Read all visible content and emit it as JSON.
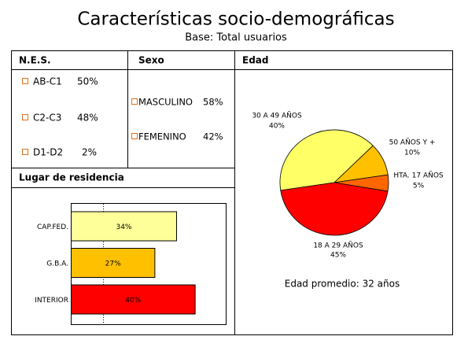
{
  "title": "Características socio-demográficas",
  "subtitle": "Base: Total usuarios",
  "nes": {
    "header": "N.E.S.",
    "items": [
      {
        "label": "AB-C1",
        "value": "50%"
      },
      {
        "label": "C2-C3",
        "value": "48%"
      },
      {
        "label": "D1-D2",
        "value": "2%"
      }
    ]
  },
  "sexo": {
    "header": "Sexo",
    "items": [
      {
        "label": "MASCULINO",
        "value": "58%"
      },
      {
        "label": "FEMENINO",
        "value": "42%"
      }
    ]
  },
  "chart_data": [
    {
      "type": "bar",
      "orientation": "horizontal",
      "title": "Lugar de residencia",
      "categories": [
        "CAP.FED.",
        "G.B.A.",
        "INTERIOR"
      ],
      "values": [
        34,
        27,
        40
      ],
      "value_labels": [
        "34%",
        "27%",
        "40%"
      ],
      "colors": [
        "#ffff99",
        "#ffc000",
        "#ff0000"
      ],
      "xlim": [
        0,
        50
      ]
    },
    {
      "type": "pie",
      "title": "Edad",
      "categories": [
        "30 A 49 AÑOS",
        "50 AÑOS Y +",
        "HTA. 17 AÑOS",
        "18 A 29 AÑOS"
      ],
      "values": [
        40,
        10,
        5,
        45
      ],
      "value_labels": [
        "40%",
        "10%",
        "5%",
        "45%"
      ],
      "colors": [
        "#ffff66",
        "#ffc000",
        "#ff6600",
        "#ff0000"
      ],
      "annotation": "Edad promedio: 32 años"
    }
  ]
}
